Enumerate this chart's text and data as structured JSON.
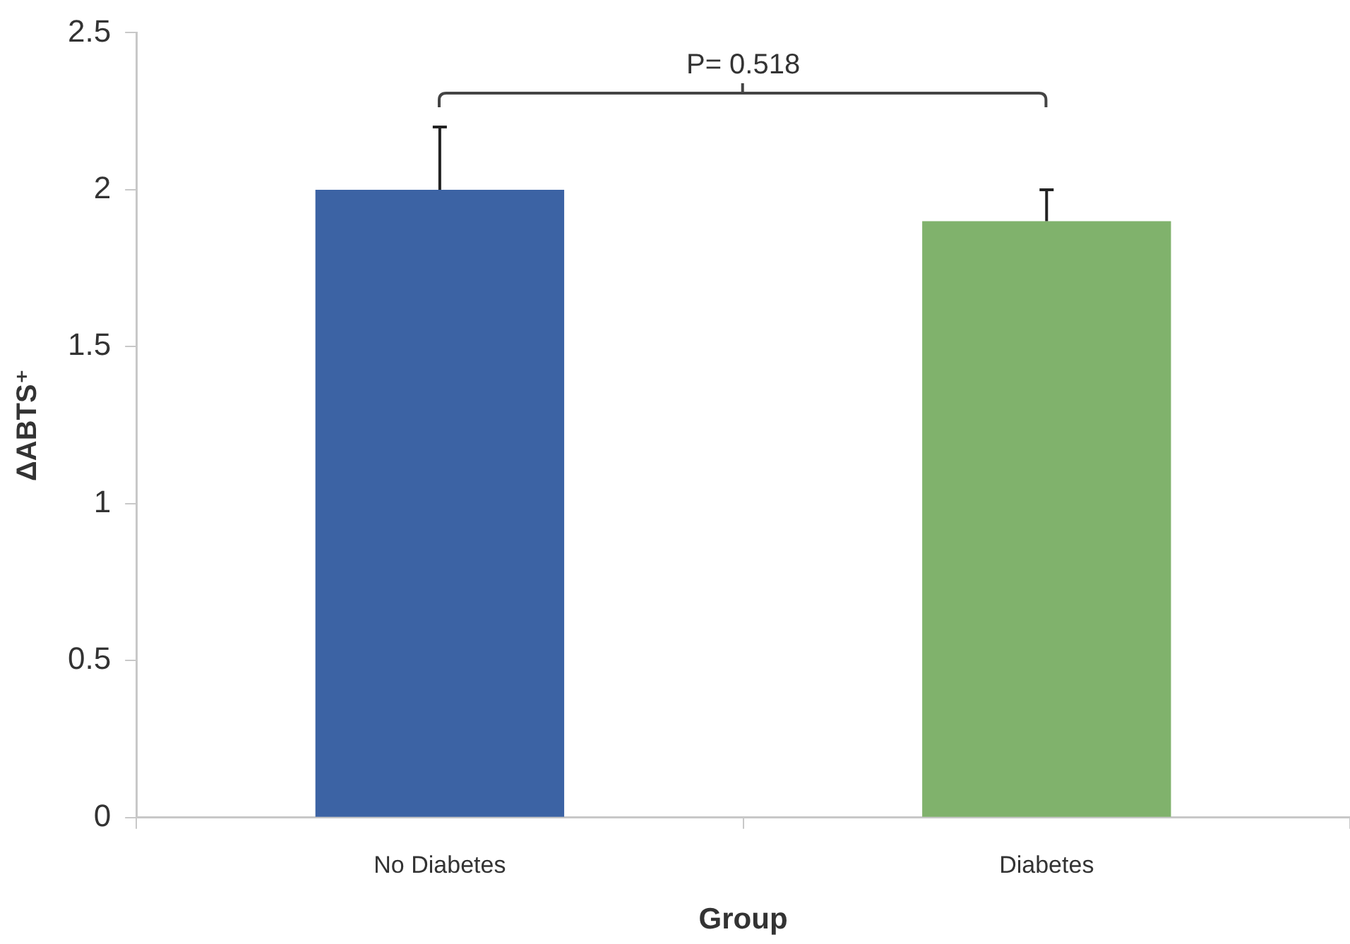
{
  "chart_data": {
    "type": "bar",
    "xlabel": "Group",
    "ylabel": "ΔABTS⁺",
    "categories": [
      "No Diabetes",
      "Diabetes"
    ],
    "values": [
      2.0,
      1.9
    ],
    "colors": [
      "#3c63a4",
      "#80b26c"
    ],
    "errors": [
      [
        2.0,
        2.2
      ],
      [
        1.9,
        2.0
      ]
    ],
    "ylim": [
      0,
      2.5
    ],
    "yticks": [
      0,
      0.5,
      1,
      1.5,
      2,
      2.5
    ],
    "grid": false,
    "legend": false,
    "annotations": [
      "P= 0.518"
    ]
  }
}
